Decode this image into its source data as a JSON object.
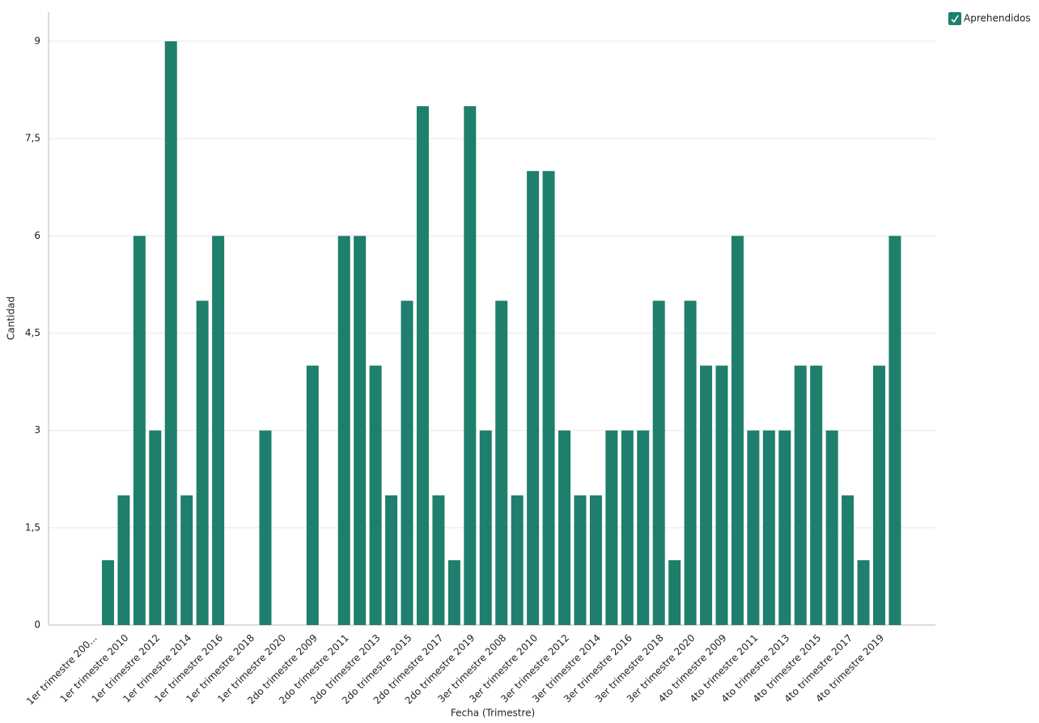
{
  "chart_data": {
    "type": "bar",
    "x_label": "Fecha (Trimestre)",
    "y_label": "Cantidad",
    "categories": [
      "1er trimestre 200...",
      null,
      "1er trimestre 2010",
      null,
      "1er trimestre 2012",
      null,
      "1er trimestre 2014",
      null,
      "1er trimestre 2016",
      null,
      "1er trimestre 2018",
      null,
      "1er trimestre 2020",
      null,
      "2do trimestre 2009",
      null,
      "2do trimestre 2011",
      null,
      "2do trimestre 2013",
      null,
      "2do trimestre 2015",
      null,
      "2do trimestre 2017",
      null,
      "2do trimestre 2019",
      null,
      "3er trimestre 2008",
      null,
      "3er trimestre 2010",
      null,
      "3er trimestre 2012",
      null,
      "3er trimestre 2014",
      null,
      "3er trimestre 2016",
      null,
      "3er trimestre 2018",
      null,
      "3er trimestre 2020",
      null,
      "4to trimestre 2009",
      null,
      "4to trimestre 2011",
      null,
      "4to trimestre 2013",
      null,
      "4to trimestre 2015",
      null,
      "4to trimestre 2017",
      null,
      "4to trimestre 2019",
      null
    ],
    "series": [
      {
        "name": "Aprehendidos",
        "color": "#1e7f6c",
        "values": [
          0,
          1,
          2,
          6,
          3,
          9,
          2,
          5,
          6,
          0,
          0,
          3,
          0,
          0,
          4,
          0,
          6,
          6,
          4,
          2,
          5,
          8,
          2,
          1,
          8,
          3,
          5,
          2,
          7,
          7,
          3,
          2,
          2,
          3,
          3,
          3,
          5,
          1,
          5,
          4,
          4,
          6,
          3,
          3,
          3,
          4,
          4,
          3,
          2,
          1,
          4,
          6
        ]
      }
    ],
    "ylim": [
      0,
      9.45
    ],
    "yticks": [
      0,
      {
        "value": 1.5,
        "label": "1,5"
      },
      3,
      {
        "value": 4.5,
        "label": "4,5"
      },
      6,
      {
        "value": 7.5,
        "label": "7,5"
      },
      9
    ],
    "grid": true,
    "legend": "top-right"
  }
}
